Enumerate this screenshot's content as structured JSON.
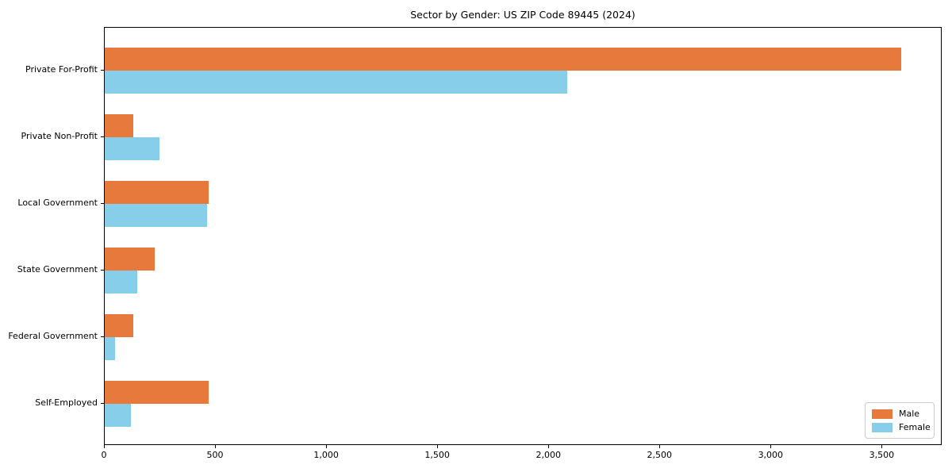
{
  "chart_data": {
    "type": "bar",
    "orientation": "horizontal",
    "title": "Sector by Gender: US ZIP Code 89445 (2024)",
    "categories": [
      "Private For-Profit",
      "Private Non-Profit",
      "Local Government",
      "State Government",
      "Federal Government",
      "Self-Employed"
    ],
    "series": [
      {
        "name": "Male",
        "color": "#e8793d",
        "values": [
          3585,
          130,
          468,
          226,
          127,
          466
        ]
      },
      {
        "name": "Female",
        "color": "#87ceeb",
        "values": [
          2080,
          247,
          462,
          147,
          48,
          119
        ]
      }
    ],
    "xlabel": "",
    "ylabel": "",
    "xlim": [
      0,
      3770
    ],
    "x_ticks": [
      0,
      500,
      1000,
      1500,
      2000,
      2500,
      3000,
      3500
    ],
    "x_tick_labels": [
      "0",
      "500",
      "1,000",
      "1,500",
      "2,000",
      "2,500",
      "3,000",
      "3,500"
    ],
    "grid": false,
    "legend": {
      "position": "lower-right",
      "entries": [
        "Male",
        "Female"
      ]
    }
  }
}
